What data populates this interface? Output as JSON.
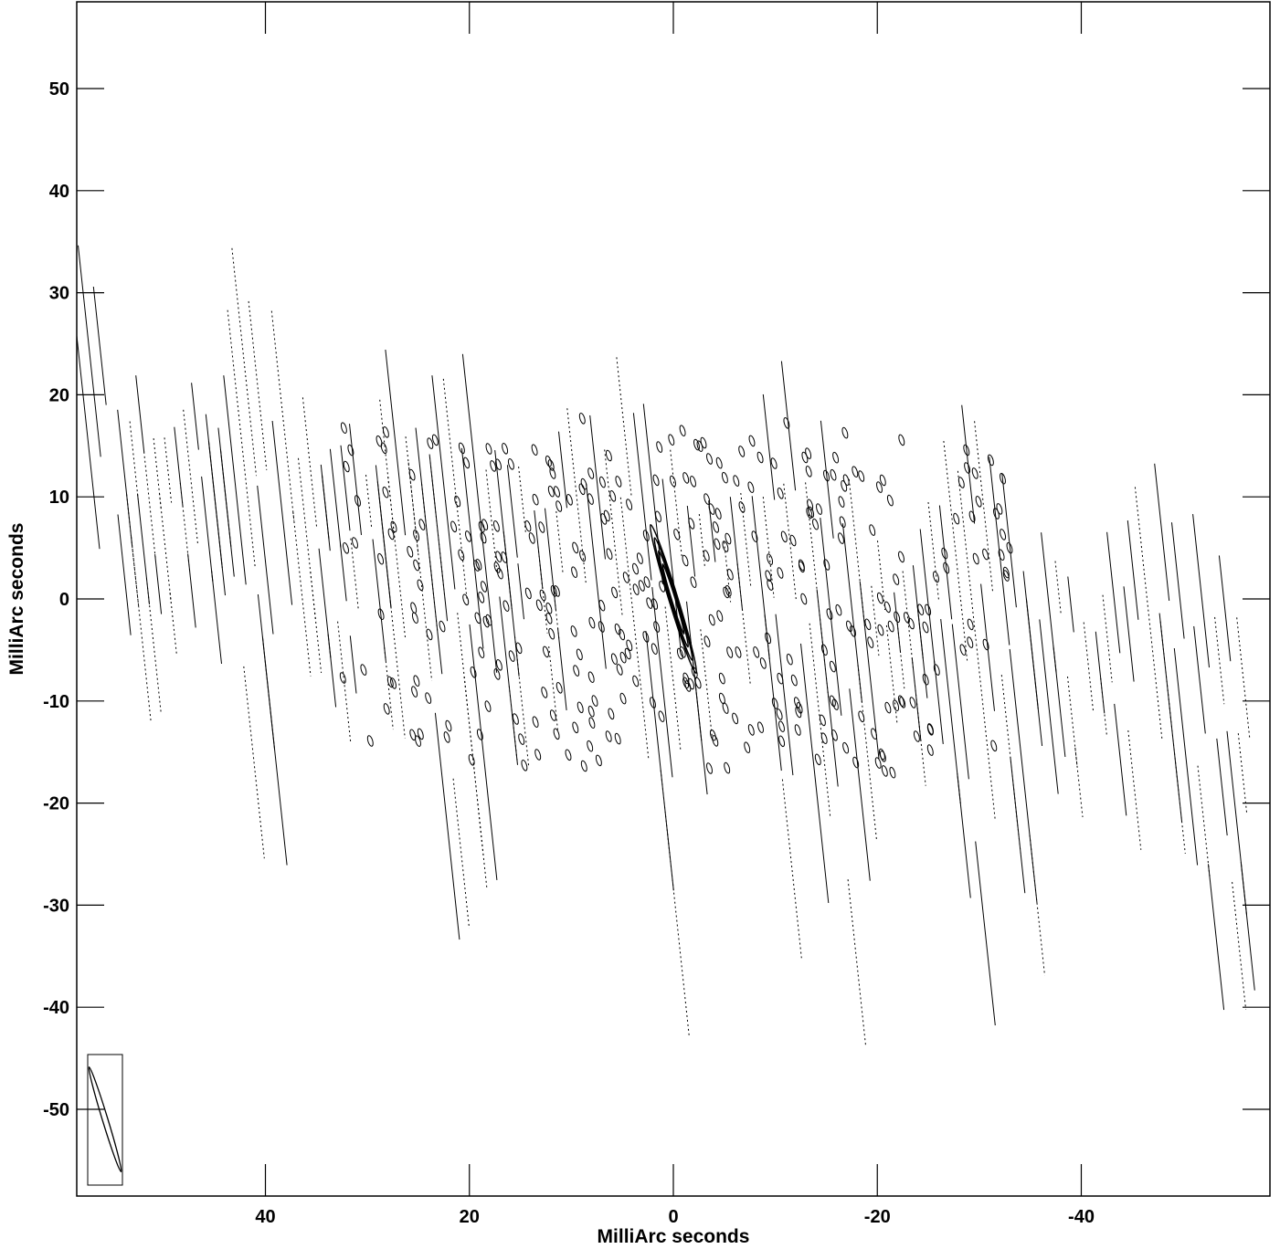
{
  "chart_data": {
    "type": "contour",
    "xlabel": "MilliArc seconds",
    "ylabel": "MilliArc seconds",
    "xlim": [
      58.5,
      -58.5
    ],
    "ylim": [
      -58.5,
      58.5
    ],
    "x_ticks": [
      40,
      20,
      0,
      -20,
      -40
    ],
    "y_ticks": [
      50,
      40,
      30,
      20,
      10,
      0,
      -10,
      -20,
      -30,
      -40,
      -50
    ],
    "x_tick_labels": [
      "40",
      "20",
      "0",
      "-20",
      "-40"
    ],
    "y_tick_labels": [
      "50",
      "40",
      "30",
      "20",
      "10",
      "0",
      "-10",
      "-20",
      "-30",
      "-40",
      "-50"
    ],
    "grid": false,
    "color": "#000000",
    "peak": {
      "x": 0,
      "y": 0
    },
    "sidelobe_centers": [
      {
        "x": 22,
        "y": 0
      },
      {
        "x": 11,
        "y": 0
      },
      {
        "x": -11,
        "y": 0
      },
      {
        "x": -22,
        "y": 0
      }
    ],
    "fringe_band": {
      "x_range": [
        58,
        -58
      ],
      "y_at_left": 12,
      "y_at_right": -12,
      "half_width": 24
    },
    "beam": {
      "major": 12,
      "minor": 1,
      "pa_deg": -17,
      "x": 55.5,
      "y": -51
    }
  }
}
